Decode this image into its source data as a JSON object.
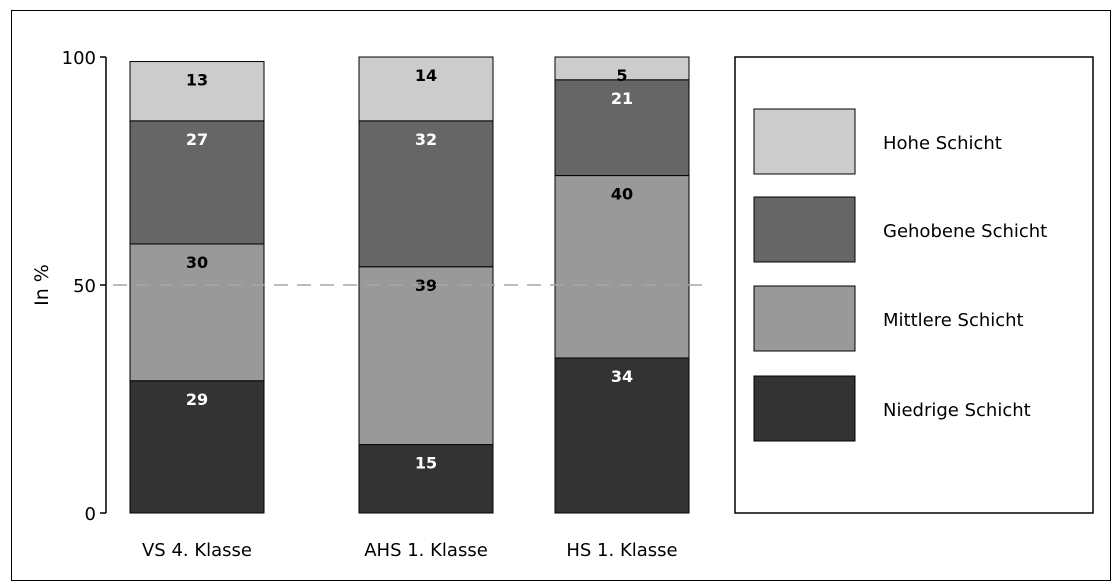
{
  "chart_data": {
    "type": "bar",
    "stacked": true,
    "categories": [
      "VS 4. Klasse",
      "AHS 1. Klasse",
      "HS 1. Klasse"
    ],
    "series": [
      {
        "name": "Niedrige Schicht",
        "color": "#333333",
        "label_color": "#ffffff",
        "values": [
          29,
          15,
          34
        ]
      },
      {
        "name": "Mittlere Schicht",
        "color": "#999999",
        "label_color": "#000000",
        "values": [
          30,
          39,
          40
        ]
      },
      {
        "name": "Gehobene Schicht",
        "color": "#666666",
        "label_color": "#ffffff",
        "values": [
          27,
          32,
          21
        ]
      },
      {
        "name": "Hohe Schicht",
        "color": "#cccccc",
        "label_color": "#000000",
        "values": [
          13,
          14,
          5
        ]
      }
    ],
    "ylabel": "In %",
    "ylim": [
      0,
      100
    ],
    "yticks": [
      0,
      50,
      100
    ],
    "reference_line": 50,
    "legend_position": "right",
    "legend_order": [
      "Hohe Schicht",
      "Gehobene Schicht",
      "Mittlere Schicht",
      "Niedrige Schicht"
    ]
  }
}
